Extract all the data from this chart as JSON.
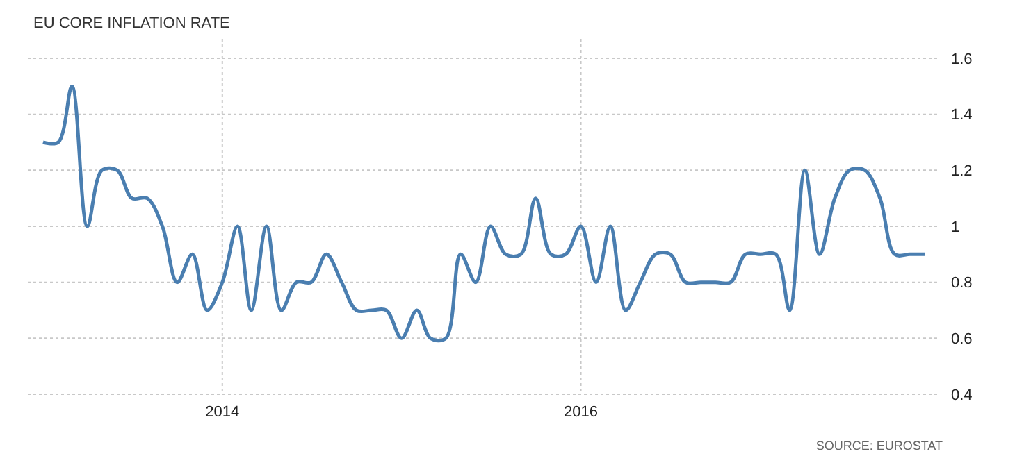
{
  "chart_data": {
    "type": "line",
    "title": "EU CORE INFLATION RATE",
    "x": [
      "2013-01",
      "2013-02",
      "2013-03",
      "2013-04",
      "2013-05",
      "2013-06",
      "2013-07",
      "2013-08",
      "2013-09",
      "2013-10",
      "2013-11",
      "2013-12",
      "2014-01",
      "2014-02",
      "2014-03",
      "2014-04",
      "2014-05",
      "2014-06",
      "2014-07",
      "2014-08",
      "2014-09",
      "2014-10",
      "2014-11",
      "2014-12",
      "2015-01",
      "2015-02",
      "2015-03",
      "2015-04",
      "2015-05",
      "2015-06",
      "2015-07",
      "2015-08",
      "2015-09",
      "2015-10",
      "2015-11",
      "2015-12",
      "2016-01",
      "2016-02",
      "2016-03",
      "2016-04",
      "2016-05",
      "2016-06",
      "2016-07",
      "2016-08",
      "2016-09",
      "2016-10",
      "2016-11",
      "2016-12",
      "2017-01",
      "2017-02",
      "2017-03",
      "2017-04",
      "2017-05",
      "2017-06",
      "2017-07",
      "2017-08",
      "2017-09",
      "2017-10",
      "2017-11",
      "2017-12"
    ],
    "series": [
      {
        "color": "#4a7eb0",
        "values": [
          1.3,
          1.3,
          1.5,
          1.0,
          1.2,
          1.2,
          1.1,
          1.1,
          1.0,
          0.8,
          0.9,
          0.7,
          0.8,
          1.0,
          0.7,
          1.0,
          0.7,
          0.8,
          0.8,
          0.9,
          0.8,
          0.7,
          0.7,
          0.7,
          0.6,
          0.7,
          0.6,
          0.6,
          0.9,
          0.8,
          1.0,
          0.9,
          0.9,
          1.1,
          0.9,
          0.9,
          1.0,
          0.8,
          1.0,
          0.7,
          0.8,
          0.9,
          0.9,
          0.8,
          0.8,
          0.8,
          0.8,
          0.9,
          0.9,
          0.9,
          0.7,
          1.2,
          0.9,
          1.1,
          1.2,
          1.2,
          1.1,
          0.9,
          0.9,
          0.9
        ]
      }
    ],
    "xlim": [
      "2012-12-01",
      "2018-01-01"
    ],
    "xticks": [
      "2014",
      "2016"
    ],
    "ylim": [
      0.4,
      1.6
    ],
    "yticks": [
      0.4,
      0.6,
      0.8,
      1,
      1.2,
      1.4,
      1.6
    ],
    "grid": true,
    "annotations": [
      "SOURCE: EUROSTAT"
    ]
  }
}
